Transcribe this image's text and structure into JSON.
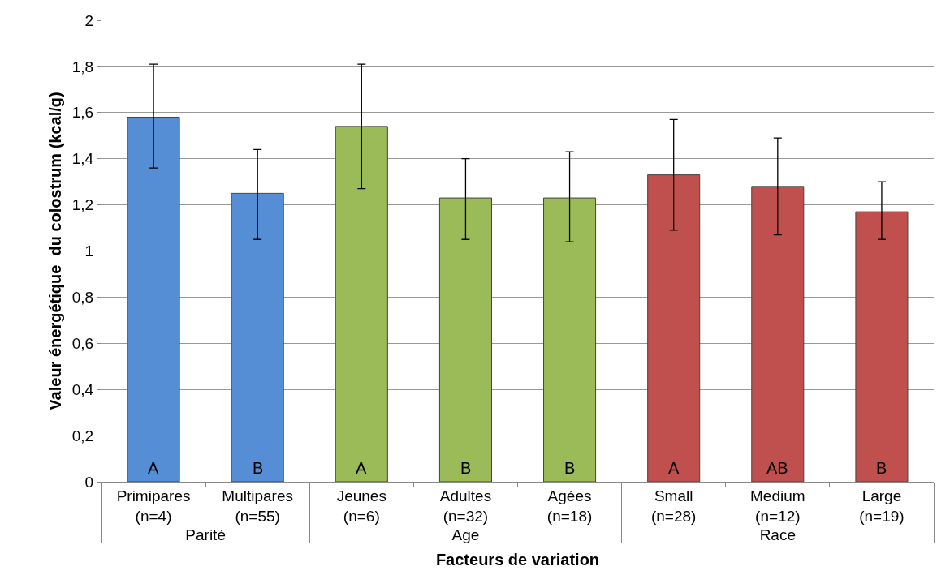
{
  "chart_data": {
    "type": "bar",
    "xlabel": "Facteurs de variation",
    "ylabel": "Valeur énergétique  du colostrum (kcal/g)",
    "categories": [
      "Primipares\n(n=4)",
      "Multipares\n(n=55)",
      "Jeunes\n(n=6)",
      "Adultes\n(n=32)",
      "Agées\n(n=18)",
      "Small\n(n=28)",
      "Medium\n(n=12)",
      "Large\n(n=19)"
    ],
    "values": [
      1.58,
      1.25,
      1.54,
      1.23,
      1.23,
      1.33,
      1.28,
      1.17
    ],
    "errors": [
      [
        1.36,
        1.81
      ],
      [
        1.05,
        1.44
      ],
      [
        1.27,
        1.81
      ],
      [
        1.05,
        1.4
      ],
      [
        1.04,
        1.43
      ],
      [
        1.09,
        1.57
      ],
      [
        1.07,
        1.49
      ],
      [
        1.05,
        1.3
      ]
    ],
    "colors": [
      "#558ed5",
      "#558ed5",
      "#9bbb59",
      "#9bbb59",
      "#9bbb59",
      "#c0504d",
      "#c0504d",
      "#c0504d"
    ],
    "annotations": [
      "Parité",
      "Age",
      "Race",
      "A",
      "B",
      "A",
      "B",
      "B",
      "A",
      "AB",
      "B"
    ],
    "ylim": [
      0,
      2
    ],
    "yticks": [
      0,
      {
        "value": 0.2,
        "label": "0,2"
      },
      {
        "value": 0.4,
        "label": "0,4"
      },
      {
        "value": 0.6,
        "label": "0,6"
      },
      {
        "value": 0.8,
        "label": "0,8"
      },
      1,
      {
        "value": 1.2,
        "label": "1,2"
      },
      {
        "value": 1.4,
        "label": "1,4"
      },
      {
        "value": 1.6,
        "label": "1,6"
      },
      {
        "value": 1.8,
        "label": "1,8"
      },
      2
    ],
    "grid": "y",
    "legend": false
  }
}
